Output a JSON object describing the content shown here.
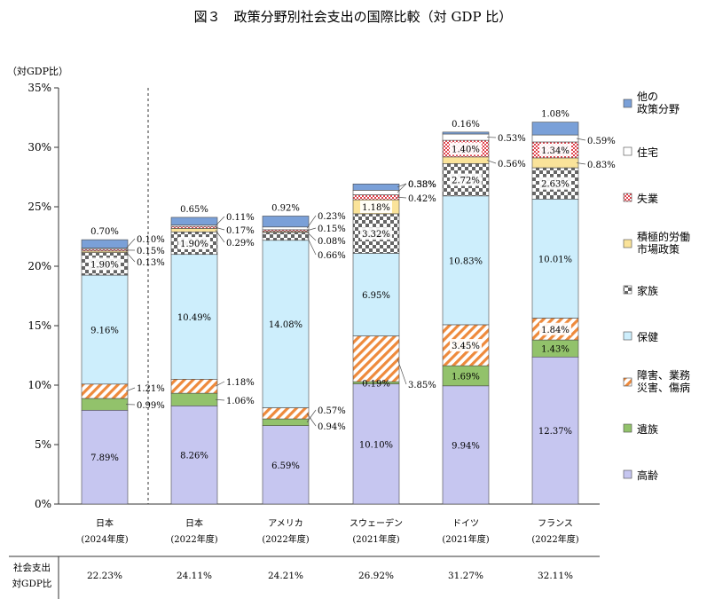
{
  "title": "図３　政策分野別社会支出の国際比較（対 GDP 比）",
  "ylabel": "（対GDP比）",
  "table_row_label": [
    "社会支出",
    "対GDP比"
  ],
  "chart_data": {
    "type": "bar",
    "stacked": true,
    "title": "図３　政策分野別社会支出の国際比較（対 GDP 比）",
    "ylabel": "（対GDP比）",
    "ylim": [
      0,
      35
    ],
    "yticks": [
      "0%",
      "5%",
      "10%",
      "15%",
      "20%",
      "25%",
      "30%",
      "35%"
    ],
    "categories": [
      {
        "name": "日本",
        "year": "(2024年度)"
      },
      {
        "name": "日本",
        "year": "(2022年度)"
      },
      {
        "name": "アメリカ",
        "year": "(2022年度)"
      },
      {
        "name": "スウェーデン",
        "year": "(2021年度)"
      },
      {
        "name": "ドイツ",
        "year": "(2021年度)"
      },
      {
        "name": "フランス",
        "year": "(2022年度)"
      }
    ],
    "series": [
      {
        "name": "高齢",
        "color": "#c6c6f0",
        "values": [
          7.89,
          8.26,
          6.59,
          10.1,
          9.94,
          12.37
        ]
      },
      {
        "name": "遺族",
        "color": "#92c26b",
        "values": [
          0.99,
          1.06,
          0.57,
          0.19,
          1.69,
          1.43
        ]
      },
      {
        "name": "障害、業務災害、傷病",
        "color": "#ee8a3c",
        "values": [
          1.21,
          1.18,
          0.94,
          3.85,
          3.45,
          1.84
        ]
      },
      {
        "name": "保健",
        "color": "#cdeefc",
        "values": [
          9.16,
          10.49,
          14.08,
          6.95,
          10.83,
          10.01
        ]
      },
      {
        "name": "家族",
        "color": "#555555",
        "values": [
          1.9,
          1.9,
          0.66,
          3.32,
          2.72,
          2.63
        ]
      },
      {
        "name": "積極的労働市場政策",
        "color": "#fae39a",
        "values": [
          0.13,
          0.29,
          0.08,
          1.18,
          0.56,
          0.83
        ]
      },
      {
        "name": "失業",
        "color": "#e0444e",
        "values": [
          0.15,
          0.17,
          0.15,
          0.42,
          1.4,
          1.34
        ]
      },
      {
        "name": "住宅",
        "color": "#ffffff",
        "values": [
          0.1,
          0.11,
          0.23,
          0.38,
          0.53,
          0.59
        ]
      },
      {
        "name": "他の政策分野",
        "color": "#7aa0d8",
        "values": [
          0.7,
          0.65,
          0.92,
          0.53,
          0.16,
          1.08
        ]
      }
    ],
    "labels": [
      {
        "bar": 0,
        "series": 0,
        "text": "7.89%"
      },
      {
        "bar": 0,
        "series": 1,
        "text": "0.99%"
      },
      {
        "bar": 0,
        "series": 2,
        "text": "1.21%"
      },
      {
        "bar": 0,
        "series": 3,
        "text": "9.16%"
      },
      {
        "bar": 0,
        "series": 4,
        "text": "1.90%"
      },
      {
        "bar": 0,
        "series": 5,
        "text": "0.13%"
      },
      {
        "bar": 0,
        "series": 6,
        "text": "0.15%"
      },
      {
        "bar": 0,
        "series": 7,
        "text": "0.10%"
      },
      {
        "bar": 0,
        "series": 8,
        "text": "0.70%"
      },
      {
        "bar": 1,
        "series": 0,
        "text": "8.26%"
      },
      {
        "bar": 1,
        "series": 1,
        "text": "1.06%"
      },
      {
        "bar": 1,
        "series": 2,
        "text": "1.18%"
      },
      {
        "bar": 1,
        "series": 3,
        "text": "10.49%"
      },
      {
        "bar": 1,
        "series": 4,
        "text": "1.90%"
      },
      {
        "bar": 1,
        "series": 5,
        "text": "0.29%"
      },
      {
        "bar": 1,
        "series": 6,
        "text": "0.17%"
      },
      {
        "bar": 1,
        "series": 7,
        "text": "0.11%"
      },
      {
        "bar": 1,
        "series": 8,
        "text": "0.65%"
      },
      {
        "bar": 2,
        "series": 0,
        "text": "6.59%"
      },
      {
        "bar": 2,
        "series": 1,
        "text": "0.57%"
      },
      {
        "bar": 2,
        "series": 2,
        "text": "0.94%"
      },
      {
        "bar": 2,
        "series": 3,
        "text": "14.08%"
      },
      {
        "bar": 2,
        "series": 4,
        "text": "0.66%"
      },
      {
        "bar": 2,
        "series": 5,
        "text": "0.08%"
      },
      {
        "bar": 2,
        "series": 6,
        "text": "0.15%"
      },
      {
        "bar": 2,
        "series": 7,
        "text": "0.23%"
      },
      {
        "bar": 2,
        "series": 8,
        "text": "0.92%"
      },
      {
        "bar": 3,
        "series": 0,
        "text": "10.10%"
      },
      {
        "bar": 3,
        "series": 1,
        "text": "0.19%"
      },
      {
        "bar": 3,
        "series": 2,
        "text": "3.85%"
      },
      {
        "bar": 3,
        "series": 3,
        "text": "6.95%"
      },
      {
        "bar": 3,
        "series": 4,
        "text": "3.32%"
      },
      {
        "bar": 3,
        "series": 5,
        "text": "1.18%"
      },
      {
        "bar": 3,
        "series": 6,
        "text": "0.42%"
      },
      {
        "bar": 3,
        "series": 7,
        "text": "0.38%"
      },
      {
        "bar": 3,
        "series": 8,
        "text": "0.53%"
      },
      {
        "bar": 4,
        "series": 0,
        "text": "9.94%"
      },
      {
        "bar": 4,
        "series": 1,
        "text": "1.69%"
      },
      {
        "bar": 4,
        "series": 2,
        "text": "3.45%"
      },
      {
        "bar": 4,
        "series": 3,
        "text": "10.83%"
      },
      {
        "bar": 4,
        "series": 4,
        "text": "2.72%"
      },
      {
        "bar": 4,
        "series": 5,
        "text": "0.56%"
      },
      {
        "bar": 4,
        "series": 6,
        "text": "1.40%"
      },
      {
        "bar": 4,
        "series": 7,
        "text": "0.53%"
      },
      {
        "bar": 4,
        "series": 8,
        "text": "0.16%"
      },
      {
        "bar": 5,
        "series": 0,
        "text": "12.37%"
      },
      {
        "bar": 5,
        "series": 1,
        "text": "1.43%"
      },
      {
        "bar": 5,
        "series": 2,
        "text": "1.84%"
      },
      {
        "bar": 5,
        "series": 3,
        "text": "10.01%"
      },
      {
        "bar": 5,
        "series": 4,
        "text": "2.63%"
      },
      {
        "bar": 5,
        "series": 5,
        "text": "0.83%"
      },
      {
        "bar": 5,
        "series": 6,
        "text": "1.34%"
      },
      {
        "bar": 5,
        "series": 7,
        "text": "0.59%"
      },
      {
        "bar": 5,
        "series": 8,
        "text": "1.08%"
      }
    ],
    "totals": [
      "22.23%",
      "24.11%",
      "24.21%",
      "26.92%",
      "31.27%",
      "32.11%"
    ],
    "legend": {
      "placement": "right",
      "entries": [
        {
          "series": 8,
          "lines": [
            "他の",
            "政策分野"
          ]
        },
        {
          "series": 7,
          "lines": [
            "住宅"
          ]
        },
        {
          "series": 6,
          "lines": [
            "失業"
          ]
        },
        {
          "series": 5,
          "lines": [
            "積極的労働",
            "市場政策"
          ]
        },
        {
          "series": 4,
          "lines": [
            "家族"
          ]
        },
        {
          "series": 3,
          "lines": [
            "保健"
          ]
        },
        {
          "series": 2,
          "lines": [
            "障害、業務",
            "災害、傷病"
          ]
        },
        {
          "series": 1,
          "lines": [
            "遺族"
          ]
        },
        {
          "series": 0,
          "lines": [
            "高齢"
          ]
        }
      ]
    },
    "grid": false
  }
}
